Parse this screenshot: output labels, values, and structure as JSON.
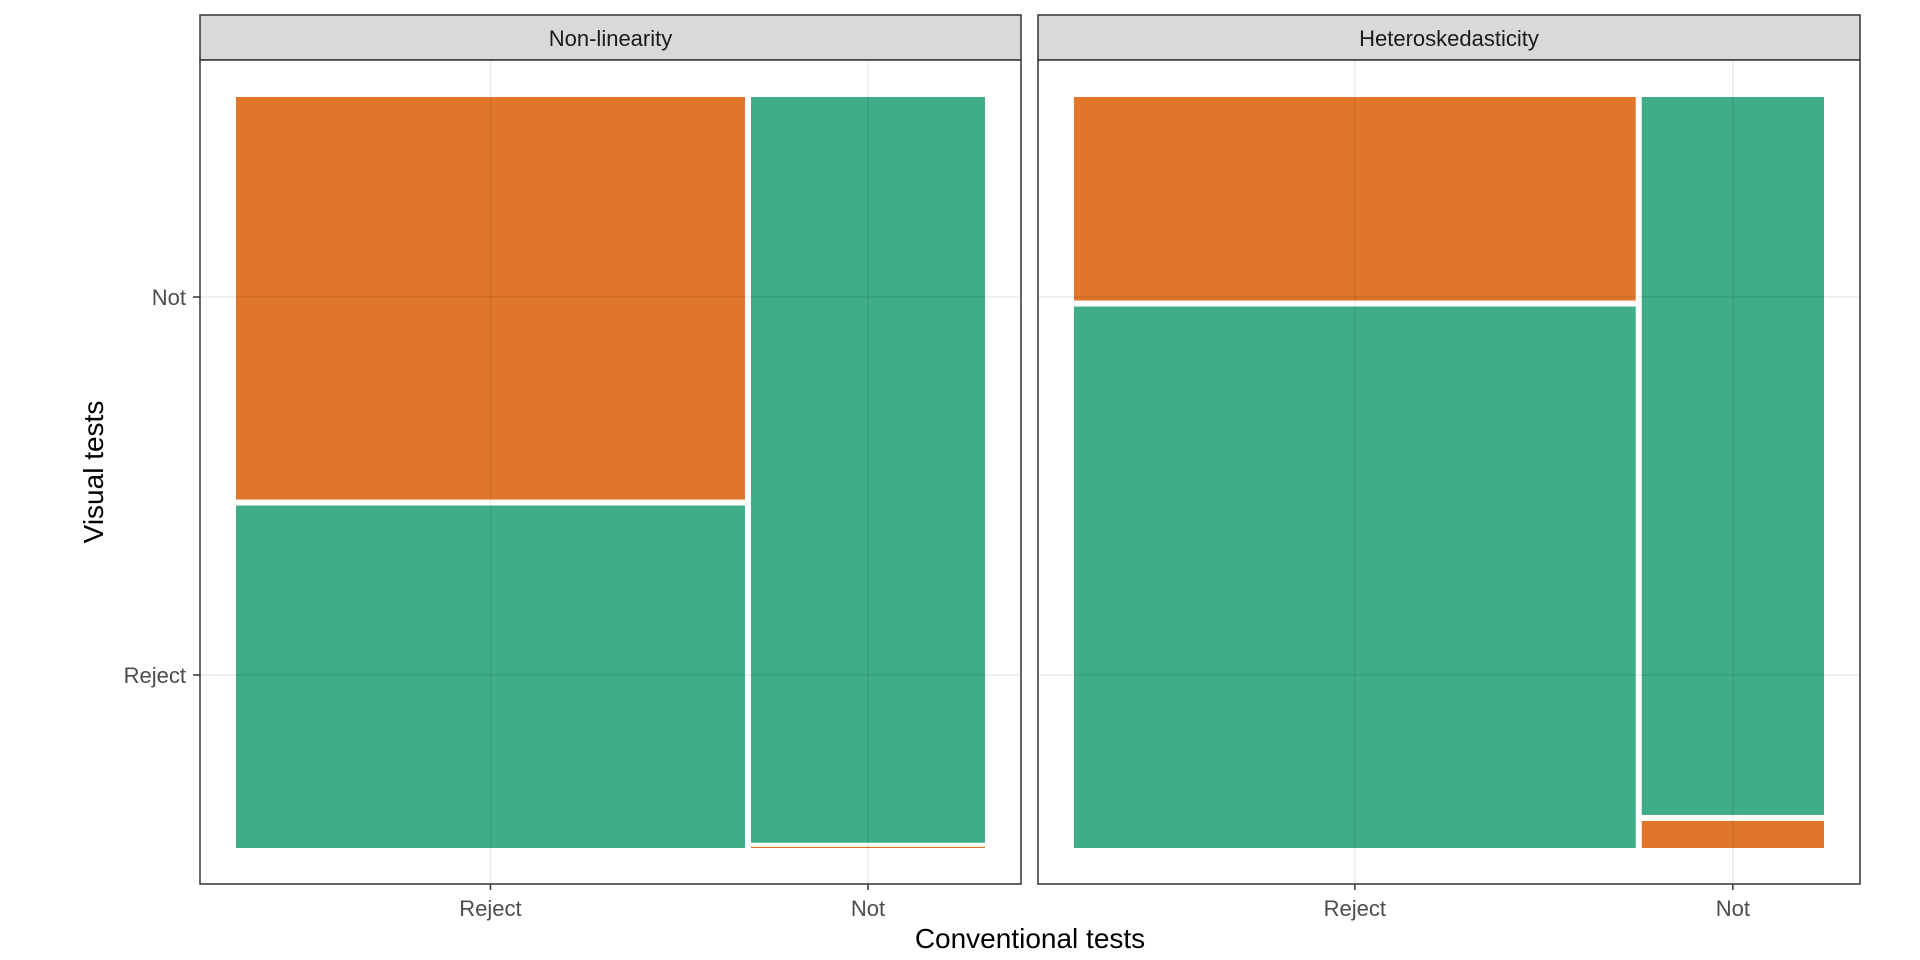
{
  "chart_data": {
    "type": "mosaic",
    "xlabel": "Conventional tests",
    "ylabel": "Visual tests",
    "x_categories": [
      "Reject",
      "Not"
    ],
    "y_categories": [
      "Reject",
      "Not"
    ],
    "grid": true,
    "colors": {
      "agree": "#3FAD89",
      "disagree": "#E0762A"
    },
    "panels": [
      {
        "strip": "Non-linearity",
        "columns": [
          {
            "x": "Reject",
            "share": 0.685,
            "reject_fraction": 0.46,
            "not_fraction": 0.54
          },
          {
            "x": "Not",
            "share": 0.315,
            "reject_fraction": 0.003,
            "not_fraction": 0.997
          }
        ]
      },
      {
        "strip": "Heteroskedasticity",
        "columns": [
          {
            "x": "Reject",
            "share": 0.755,
            "reject_fraction": 0.725,
            "not_fraction": 0.275
          },
          {
            "x": "Not",
            "share": 0.245,
            "reject_fraction": 0.04,
            "not_fraction": 0.96
          }
        ]
      }
    ]
  }
}
